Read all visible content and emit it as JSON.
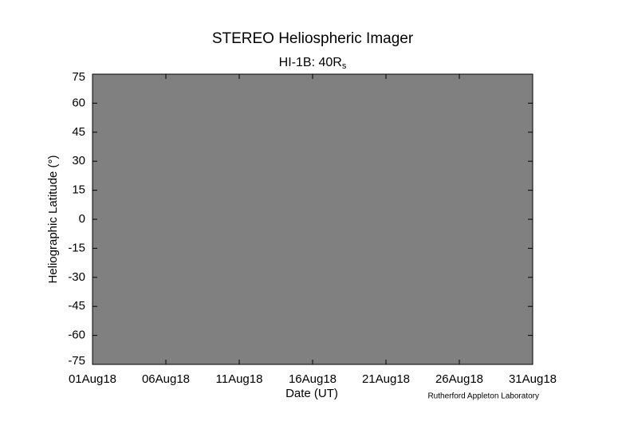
{
  "chart_data": {
    "type": "heatmap",
    "title": "STEREO Heliospheric Imager",
    "subtitle": {
      "text": "HI-1B: 40R",
      "subscript": "s"
    },
    "x_label": "Date (UT)",
    "y_label": "Heliographic Latitude (°)",
    "credit": "Rutherford Appleton Laboratory",
    "plot_background": "#808080",
    "xlim": [
      "2018-08-01",
      "2018-08-31"
    ],
    "xticks": [
      {
        "value": "2018-08-01",
        "label": "01Aug18"
      },
      {
        "value": "2018-08-06",
        "label": "06Aug18"
      },
      {
        "value": "2018-08-11",
        "label": "11Aug18"
      },
      {
        "value": "2018-08-16",
        "label": "16Aug18"
      },
      {
        "value": "2018-08-21",
        "label": "21Aug18"
      },
      {
        "value": "2018-08-26",
        "label": "26Aug18"
      },
      {
        "value": "2018-08-31",
        "label": "31Aug18"
      }
    ],
    "ylim": [
      -75,
      75
    ],
    "yticks": [
      75,
      60,
      45,
      30,
      15,
      0,
      -15,
      -30,
      -45,
      -60,
      -75
    ]
  }
}
